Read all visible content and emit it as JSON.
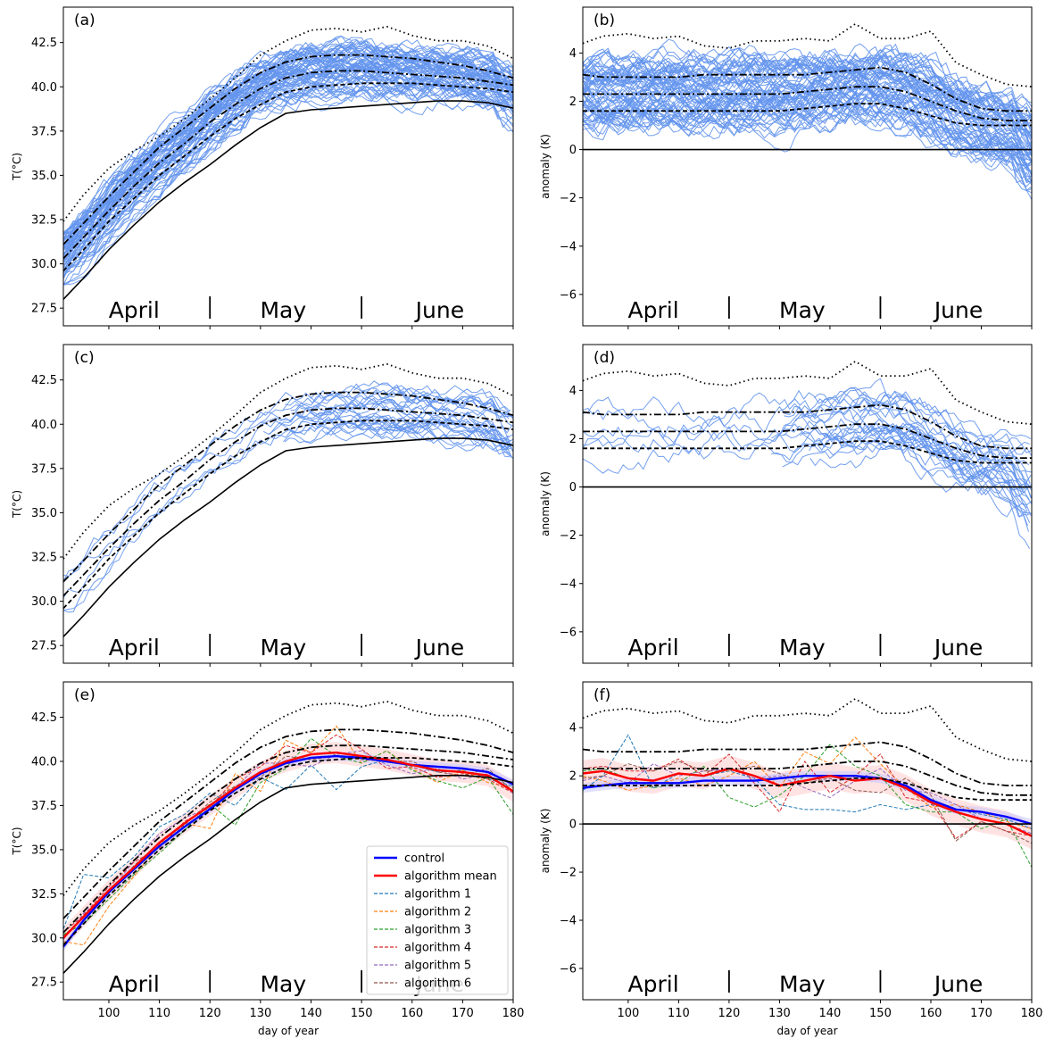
{
  "chart_data": [
    {
      "id": "a",
      "type": "line",
      "panel_label": "(a)",
      "ylabel": "T(°C)",
      "xlabel": "",
      "xlim": [
        91,
        180
      ],
      "ylim": [
        26.5,
        44.5
      ],
      "yticks": [
        "27.5",
        "30.0",
        "32.5",
        "35.0",
        "37.5",
        "40.0",
        "42.5"
      ],
      "xticks": [],
      "months": [
        "April",
        "May",
        "June"
      ],
      "month_separators": [
        120,
        150
      ],
      "reference": "temperature",
      "ensemble": "full",
      "legend": null
    },
    {
      "id": "b",
      "type": "line",
      "panel_label": "(b)",
      "ylabel": "anomaly (K)",
      "xlabel": "",
      "xlim": [
        91,
        180
      ],
      "ylim": [
        -7.3,
        5.9
      ],
      "yticks": [
        "−6",
        "−4",
        "−2",
        "0",
        "2",
        "4"
      ],
      "xticks": [],
      "months": [
        "April",
        "May",
        "June"
      ],
      "month_separators": [
        120,
        150
      ],
      "reference": "anomaly",
      "ensemble": "full",
      "legend": null
    },
    {
      "id": "c",
      "type": "line",
      "panel_label": "(c)",
      "ylabel": "T(°C)",
      "xlabel": "",
      "xlim": [
        91,
        180
      ],
      "ylim": [
        26.5,
        44.5
      ],
      "yticks": [
        "27.5",
        "30.0",
        "32.5",
        "35.0",
        "37.5",
        "40.0",
        "42.5"
      ],
      "xticks": [],
      "months": [
        "April",
        "May",
        "June"
      ],
      "month_separators": [
        120,
        150
      ],
      "reference": "temperature",
      "ensemble": "cloned",
      "legend": null
    },
    {
      "id": "d",
      "type": "line",
      "panel_label": "(d)",
      "ylabel": "anomaly (K)",
      "xlabel": "",
      "xlim": [
        91,
        180
      ],
      "ylim": [
        -7.3,
        5.9
      ],
      "yticks": [
        "−6",
        "−4",
        "−2",
        "0",
        "2",
        "4"
      ],
      "xticks": [],
      "months": [
        "April",
        "May",
        "June"
      ],
      "month_separators": [
        120,
        150
      ],
      "reference": "anomaly",
      "ensemble": "cloned",
      "legend": null
    },
    {
      "id": "e",
      "type": "line",
      "panel_label": "(e)",
      "ylabel": "T(°C)",
      "xlabel": "day of year",
      "xlim": [
        91,
        180
      ],
      "ylim": [
        26.5,
        44.5
      ],
      "yticks": [
        "27.5",
        "30.0",
        "32.5",
        "35.0",
        "37.5",
        "40.0",
        "42.5"
      ],
      "xticks": [
        "100",
        "110",
        "120",
        "130",
        "140",
        "150",
        "160",
        "170",
        "180"
      ],
      "months": [
        "April",
        "May",
        "June"
      ],
      "month_separators": [
        120,
        150
      ],
      "reference": "temperature",
      "ensemble": "algorithms",
      "legend": {
        "position": "lower right",
        "entries": [
          {
            "label": "control",
            "color": "#0000ff",
            "style": "solid-thick"
          },
          {
            "label": "algorithm mean",
            "color": "#ff0000",
            "style": "solid-thick"
          },
          {
            "label": "algorithm 1",
            "color": "#1f77b4",
            "style": "dashed"
          },
          {
            "label": "algorithm 2",
            "color": "#ff7f0e",
            "style": "dashed"
          },
          {
            "label": "algorithm 3",
            "color": "#2ca02c",
            "style": "dashed"
          },
          {
            "label": "algorithm 4",
            "color": "#d62728",
            "style": "dashed"
          },
          {
            "label": "algorithm 5",
            "color": "#9467bd",
            "style": "dashed"
          },
          {
            "label": "algorithm 6",
            "color": "#8c564b",
            "style": "dashed"
          }
        ]
      }
    },
    {
      "id": "f",
      "type": "line",
      "panel_label": "(f)",
      "ylabel": "anomaly (K)",
      "xlabel": "day of year",
      "xlim": [
        91,
        180
      ],
      "ylim": [
        -7.3,
        5.9
      ],
      "yticks": [
        "−6",
        "−4",
        "−2",
        "0",
        "2",
        "4"
      ],
      "xticks": [
        "100",
        "110",
        "120",
        "130",
        "140",
        "150",
        "160",
        "170",
        "180"
      ],
      "months": [
        "April",
        "May",
        "June"
      ],
      "month_separators": [
        120,
        150
      ],
      "reference": "anomaly",
      "ensemble": "algorithms",
      "legend": null
    }
  ],
  "reference_curves": {
    "temperature": {
      "x": [
        91,
        95,
        100,
        105,
        110,
        115,
        120,
        125,
        130,
        135,
        140,
        145,
        150,
        155,
        160,
        165,
        170,
        175,
        180
      ],
      "climatology": [
        28.0,
        29.2,
        30.8,
        32.2,
        33.5,
        34.6,
        35.6,
        36.7,
        37.7,
        38.5,
        38.7,
        38.8,
        38.9,
        39.0,
        39.1,
        39.2,
        39.2,
        39.1,
        38.8
      ],
      "q_low": [
        29.6,
        30.8,
        32.4,
        33.7,
        35.0,
        36.1,
        37.2,
        38.2,
        39.0,
        39.7,
        40.0,
        40.1,
        40.2,
        40.2,
        40.2,
        40.1,
        40.0,
        39.9,
        39.7
      ],
      "q_mid": [
        30.3,
        31.5,
        33.0,
        34.4,
        35.7,
        36.8,
        38.0,
        39.0,
        39.9,
        40.5,
        40.8,
        40.9,
        40.9,
        40.8,
        40.7,
        40.6,
        40.5,
        40.3,
        40.1
      ],
      "q_high": [
        31.1,
        32.3,
        33.8,
        35.2,
        36.6,
        37.7,
        38.8,
        39.9,
        40.8,
        41.4,
        41.7,
        41.8,
        41.8,
        41.7,
        41.6,
        41.4,
        41.2,
        40.9,
        40.5
      ],
      "max": [
        32.4,
        33.9,
        35.4,
        36.4,
        37.2,
        38.2,
        39.3,
        40.5,
        41.8,
        42.6,
        43.2,
        43.3,
        43.1,
        43.4,
        42.9,
        42.6,
        42.6,
        42.3,
        41.6
      ]
    },
    "anomaly": {
      "x": [
        91,
        95,
        100,
        105,
        110,
        115,
        120,
        125,
        130,
        135,
        140,
        145,
        150,
        155,
        160,
        165,
        170,
        175,
        180
      ],
      "zero": [
        0,
        0,
        0,
        0,
        0,
        0,
        0,
        0,
        0,
        0,
        0,
        0,
        0,
        0,
        0,
        0,
        0,
        0,
        0
      ],
      "q_low": [
        1.6,
        1.6,
        1.6,
        1.6,
        1.6,
        1.6,
        1.6,
        1.6,
        1.6,
        1.7,
        1.8,
        1.9,
        1.9,
        1.7,
        1.4,
        1.1,
        1.0,
        1.0,
        1.0
      ],
      "q_mid": [
        2.3,
        2.3,
        2.3,
        2.3,
        2.3,
        2.3,
        2.3,
        2.3,
        2.3,
        2.4,
        2.5,
        2.6,
        2.6,
        2.4,
        2.0,
        1.6,
        1.3,
        1.2,
        1.2
      ],
      "q_high": [
        3.1,
        3.0,
        3.0,
        3.0,
        3.0,
        3.1,
        3.1,
        3.1,
        3.1,
        3.1,
        3.2,
        3.3,
        3.4,
        3.2,
        2.7,
        2.1,
        1.7,
        1.6,
        1.6
      ],
      "max": [
        4.4,
        4.7,
        4.8,
        4.6,
        4.7,
        4.3,
        4.2,
        4.5,
        4.5,
        4.6,
        4.5,
        5.2,
        4.6,
        4.6,
        4.9,
        3.6,
        3.1,
        2.7,
        2.6
      ]
    }
  },
  "algorithm_series": {
    "x": [
      91,
      95,
      100,
      105,
      110,
      115,
      120,
      125,
      130,
      135,
      140,
      145,
      150,
      155,
      160,
      165,
      170,
      175,
      180
    ],
    "temperature": {
      "control": [
        29.5,
        31.0,
        32.6,
        33.9,
        35.2,
        36.3,
        37.3,
        38.4,
        39.3,
        39.9,
        40.2,
        40.3,
        40.2,
        40.0,
        39.8,
        39.7,
        39.6,
        39.4,
        38.7
      ],
      "algorithm mean": [
        30.0,
        31.2,
        32.7,
        34.0,
        35.4,
        36.5,
        37.5,
        38.5,
        39.4,
        40.0,
        40.4,
        40.5,
        40.3,
        40.1,
        39.8,
        39.5,
        39.4,
        39.2,
        38.3
      ],
      "algorithm 1": [
        30.5,
        33.6,
        33.4,
        34.6,
        36.3,
        37.0,
        38.2,
        37.5,
        39.1,
        38.4,
        39.8,
        38.4,
        39.7,
        40.1,
        39.8,
        39.4,
        39.5,
        39.0,
        38.6
      ],
      "algorithm 2": [
        29.8,
        29.6,
        31.8,
        33.5,
        35.3,
        36.5,
        36.2,
        39.3,
        38.3,
        41.2,
        40.5,
        42.0,
        39.9,
        40.6,
        39.6,
        38.8,
        39.5,
        38.8,
        38.5
      ],
      "algorithm 3": [
        30.2,
        30.8,
        32.2,
        33.6,
        34.8,
        36.1,
        37.6,
        36.4,
        38.8,
        39.6,
        41.3,
        40.3,
        39.9,
        40.6,
        39.5,
        38.9,
        38.5,
        39.1,
        37.0
      ],
      "algorithm 4": [
        30.3,
        31.3,
        32.9,
        34.3,
        35.1,
        36.6,
        37.4,
        39.0,
        39.7,
        40.9,
        40.5,
        41.5,
        40.7,
        39.6,
        39.7,
        39.1,
        39.3,
        39.0,
        38.2
      ],
      "algorithm 5": [
        29.9,
        31.4,
        32.5,
        34.4,
        35.9,
        36.8,
        37.4,
        38.5,
        39.9,
        39.9,
        39.7,
        40.4,
        40.6,
        39.8,
        39.3,
        39.6,
        39.0,
        39.3,
        38.2
      ],
      "algorithm 6": [
        30.1,
        31.2,
        32.6,
        34.1,
        35.4,
        36.4,
        37.7,
        38.6,
        39.1,
        40.3,
        40.1,
        40.3,
        40.1,
        40.0,
        40.0,
        39.4,
        39.2,
        39.6,
        38.3
      ]
    },
    "anomaly": {
      "control": [
        1.5,
        1.6,
        1.7,
        1.7,
        1.7,
        1.8,
        1.8,
        1.8,
        1.9,
        2.0,
        2.0,
        2.0,
        1.9,
        1.6,
        1.0,
        0.6,
        0.5,
        0.3,
        0.0
      ],
      "algorithm mean": [
        2.1,
        2.2,
        1.9,
        1.8,
        2.1,
        2.0,
        2.3,
        2.0,
        1.6,
        1.8,
        2.0,
        1.8,
        1.9,
        1.5,
        0.9,
        0.5,
        0.2,
        0.0,
        -0.5
      ],
      "algorithm 1": [
        1.4,
        2.0,
        3.7,
        1.5,
        2.1,
        2.0,
        2.2,
        1.9,
        0.8,
        0.6,
        0.6,
        0.5,
        0.8,
        0.6,
        0.8,
        0.6,
        0.4,
        0.2,
        -0.2
      ],
      "algorithm 2": [
        2.0,
        1.8,
        1.4,
        1.6,
        1.9,
        1.6,
        2.0,
        2.6,
        1.5,
        3.0,
        2.5,
        3.6,
        2.5,
        1.5,
        0.7,
        0.8,
        0.5,
        0.1,
        -0.2
      ],
      "algorithm 3": [
        2.2,
        2.3,
        1.9,
        1.5,
        1.7,
        2.4,
        1.1,
        0.7,
        1.2,
        2.0,
        3.3,
        2.4,
        2.0,
        0.8,
        0.5,
        0.5,
        -0.2,
        0.2,
        -1.8
      ],
      "algorithm 4": [
        2.3,
        2.4,
        2.2,
        2.2,
        2.7,
        2.0,
        2.9,
        1.7,
        0.5,
        2.6,
        1.3,
        2.0,
        2.9,
        1.1,
        0.9,
        -0.6,
        0.1,
        -0.3,
        -0.5
      ],
      "algorithm 5": [
        1.8,
        2.0,
        1.7,
        2.5,
        2.0,
        2.2,
        2.3,
        1.9,
        2.0,
        1.5,
        1.1,
        1.8,
        2.3,
        1.4,
        1.3,
        0.8,
        0.2,
        0.0,
        -0.4
      ],
      "algorithm 6": [
        1.9,
        2.0,
        2.5,
        2.2,
        2.6,
        2.2,
        2.2,
        2.4,
        2.1,
        1.7,
        1.9,
        1.4,
        1.3,
        1.9,
        1.2,
        -0.7,
        0.1,
        -0.3,
        -0.8
      ]
    }
  },
  "colors": {
    "ensemble": "#6495ed",
    "control": "#0000ff",
    "algorithm_mean": "#ff0000",
    "algorithm_band": "#ffcccc",
    "control_band": "#c8c8ff",
    "reference": "#000000"
  }
}
